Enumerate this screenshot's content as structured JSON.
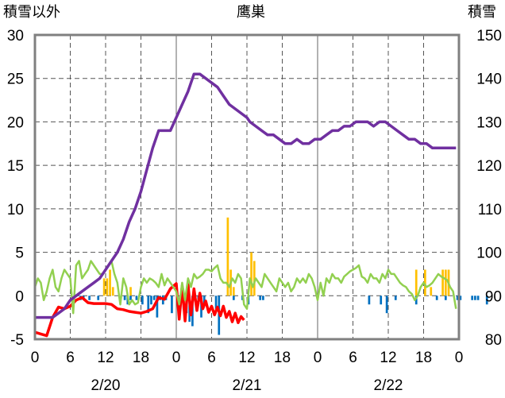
{
  "chart_data": {
    "type": "bar",
    "title": "鹰巣",
    "left_axis_label": "積雪以外",
    "right_axis_label": "積雪",
    "left_ylim": [
      -5,
      30
    ],
    "left_yticks": [
      -5,
      0,
      5,
      10,
      15,
      20,
      25,
      30
    ],
    "right_ylim": [
      80,
      150
    ],
    "right_yticks": [
      80,
      90,
      100,
      110,
      120,
      130,
      140,
      150
    ],
    "x_tick_labels": [
      "0",
      "6",
      "12",
      "18",
      "0",
      "6",
      "12",
      "18",
      "0",
      "6",
      "12",
      "18",
      "0"
    ],
    "date_labels": [
      "2/20",
      "2/21",
      "2/22"
    ],
    "grid": true,
    "series": [
      {
        "axis": "left",
        "kind": "bar",
        "color": "#ffc000",
        "values": [
          0,
          0,
          0,
          0,
          0,
          0,
          0,
          0,
          0,
          0,
          0,
          0,
          0,
          0,
          0,
          0,
          0,
          0,
          0,
          0,
          0,
          0,
          0,
          2,
          2,
          3,
          1,
          0,
          0,
          0,
          0,
          0,
          1,
          0,
          0,
          0,
          0,
          0,
          0,
          0,
          0,
          0,
          0,
          0,
          0,
          0,
          0,
          0,
          0,
          0,
          0,
          0,
          0,
          0,
          0,
          0,
          0,
          0,
          0,
          0,
          0,
          0,
          0,
          0,
          0,
          9,
          3,
          1,
          0,
          0,
          0,
          0,
          0,
          5,
          4,
          0,
          0,
          0,
          0,
          0,
          0,
          0,
          0,
          0,
          0,
          0,
          0,
          0,
          0,
          0,
          0,
          0,
          0,
          0,
          0,
          0,
          0,
          0,
          0,
          0,
          0,
          0,
          0,
          0,
          0,
          0,
          0,
          0,
          0,
          0,
          0,
          0,
          0,
          0,
          0,
          0,
          0,
          0,
          0,
          0,
          0,
          0,
          0,
          0,
          0,
          0,
          0,
          0,
          0,
          3,
          0,
          0,
          3,
          0,
          1,
          0,
          0,
          0,
          3,
          3,
          3,
          0,
          0,
          0,
          0,
          0,
          0,
          0,
          0,
          0,
          0,
          0
        ]
      },
      {
        "axis": "left",
        "kind": "bar",
        "color": "#0070c0",
        "values": [
          0,
          0,
          0,
          0,
          0,
          0,
          0,
          0,
          0,
          0,
          0,
          0,
          0,
          0,
          0,
          -0.5,
          -0.5,
          0,
          -0.5,
          0,
          0,
          -0.5,
          0,
          0,
          0,
          0,
          0,
          0,
          0,
          0,
          -0.5,
          -1,
          -0.5,
          0,
          -0.5,
          0,
          -1,
          0,
          -2,
          -1,
          -0.5,
          -2.5,
          -0.5,
          -1,
          -0.5,
          0,
          -2,
          0,
          -1,
          0,
          -1.5,
          -2,
          -3,
          -3.5,
          -0.5,
          -1,
          -2.5,
          -1,
          0,
          0,
          0,
          -1.5,
          -4.5,
          0,
          0,
          0,
          0,
          -0.5,
          0,
          0,
          -0.5,
          0,
          -1,
          0,
          0,
          0,
          -0.5,
          -0.5,
          0,
          0,
          0,
          0,
          0,
          0,
          0,
          0,
          0,
          0,
          0,
          0,
          0,
          0,
          0,
          0,
          0,
          0,
          0,
          0,
          0,
          0,
          0,
          0,
          0,
          0,
          0,
          0,
          0,
          0,
          0,
          0,
          0,
          0,
          0,
          -1,
          0,
          0,
          0,
          -1,
          0,
          -2,
          0,
          0,
          -0.5,
          0,
          0,
          0,
          0,
          0,
          0,
          -1,
          0,
          0,
          0,
          0,
          0,
          0,
          -0.5,
          0,
          0,
          -0.5,
          0,
          0,
          0,
          -0.5,
          -0.5,
          0,
          0,
          0,
          -0.5,
          -0.5,
          -0.5,
          0,
          0,
          -1,
          0
        ]
      },
      {
        "axis": "left",
        "kind": "line",
        "color": "#ff0000",
        "x": [
          0,
          2,
          4,
          6,
          8,
          10,
          12,
          14,
          16,
          18,
          20,
          22,
          24,
          26,
          28,
          30,
          32,
          34,
          36,
          38,
          40,
          42,
          44,
          46,
          48,
          50,
          52,
          54,
          56,
          58,
          60,
          62,
          64,
          66,
          68,
          70
        ],
        "values": [
          -4.2,
          -4.4,
          -4.6,
          -2.5,
          -1.3,
          -1.5,
          -1.2,
          -0.5,
          -0.2,
          -0.8,
          -0.9,
          -0.9,
          -0.9,
          -1,
          -1.5,
          -1.6,
          -1.8,
          -1.9,
          -2,
          -1.8,
          -1.5,
          -0.2,
          -0.4,
          0.8,
          1.4,
          1.1,
          1.3,
          0.8,
          0.3,
          -0.6,
          -1.2,
          -1.3,
          -1.2,
          -1.8,
          -2,
          -2.4
        ],
        "ext_x": [
          49,
          51,
          53,
          55,
          57,
          59,
          61,
          63,
          65,
          67,
          69,
          71
        ],
        "ext_values": [
          -2.7,
          -2.9,
          -2.2,
          -1.7,
          -1.5,
          -1.9,
          -2.2,
          -2.3,
          -2.5,
          -3,
          -3.1,
          -2.8
        ]
      },
      {
        "axis": "left",
        "kind": "line",
        "color": "#92d050",
        "x": [
          0,
          1,
          2,
          3,
          4,
          5,
          6,
          7,
          8,
          9,
          10,
          11,
          12,
          13,
          14,
          15,
          16,
          17,
          18,
          19,
          20,
          21,
          22,
          23,
          24,
          25,
          26,
          27,
          28,
          29,
          30,
          31,
          32,
          33,
          34,
          35,
          36,
          37,
          38,
          39,
          40,
          41,
          42,
          43,
          44,
          45,
          46,
          47,
          48,
          49,
          50,
          51,
          52,
          53,
          54,
          55,
          56,
          57,
          58,
          59,
          60,
          61,
          62,
          63,
          64,
          65,
          66,
          67,
          68,
          69,
          70,
          71,
          72
        ],
        "values": [
          1,
          2,
          1.5,
          -0.5,
          0.5,
          2,
          3,
          1,
          0.5,
          2,
          3,
          2.5,
          2,
          -2,
          3.5,
          4,
          2,
          2.5,
          3,
          4,
          3.5,
          3,
          2.5,
          2.5,
          3,
          3.5,
          4,
          2.5,
          1.5,
          -1,
          2,
          1,
          -1,
          -0.5,
          -1,
          -0.8,
          1,
          2,
          1.5,
          2,
          1.8,
          1.5,
          1,
          2.5,
          1.2,
          2,
          1.5,
          1,
          0.5,
          -1,
          1.5,
          -0.5,
          2,
          1,
          2.5,
          2,
          2.2,
          2.5,
          3,
          3,
          2.8,
          3.2,
          3.5,
          2,
          1.5,
          1.5,
          1,
          2,
          1.5,
          2.5,
          2,
          -1,
          -1.5
        ],
        "ext_x": [
          73,
          74,
          75,
          76,
          77,
          78,
          79,
          80,
          81,
          82,
          83,
          84,
          85,
          86,
          87,
          88,
          89,
          90,
          91,
          92,
          93,
          94,
          95,
          96,
          97,
          98,
          99,
          100,
          101,
          102,
          103,
          104,
          105,
          106,
          107,
          108,
          109,
          110,
          111,
          112,
          113,
          114,
          115,
          116,
          117,
          118,
          119,
          120,
          121,
          122,
          123,
          124,
          125,
          126,
          127,
          128,
          129,
          130,
          131,
          132,
          133,
          134,
          135,
          136,
          137,
          138,
          139,
          140,
          141,
          142,
          143
        ],
        "ext_values": [
          2,
          1,
          2,
          1.5,
          1,
          2.5,
          2,
          1.5,
          1,
          0.5,
          2,
          1.5,
          1,
          1.5,
          0.5,
          1,
          2,
          1.5,
          2,
          1.5,
          2.5,
          2,
          1,
          -0.5,
          1.5,
          0,
          2,
          1.5,
          2.5,
          2,
          2,
          1.5,
          2.2,
          2.5,
          2.8,
          3,
          3.2,
          3.5,
          2.2,
          2,
          1.5,
          2.5,
          2,
          2,
          1.5,
          2.5,
          2,
          3,
          2.5,
          2.5,
          2,
          1.5,
          1.2,
          1,
          0.5,
          0.2,
          -0.5,
          0,
          1,
          1.5,
          1,
          1.2,
          1.5,
          2,
          2.5,
          2.2,
          2,
          1.8,
          1,
          0.5,
          -1.5
        ]
      },
      {
        "axis": "right",
        "kind": "line",
        "color": "#7030a0",
        "x": [
          0,
          3,
          6,
          8,
          10,
          12,
          14,
          16,
          18,
          20,
          22,
          24,
          26,
          28,
          30,
          32,
          34,
          36,
          38,
          40,
          42,
          44,
          46,
          48,
          50,
          52,
          54,
          56,
          58,
          60,
          62,
          64,
          66,
          68,
          70,
          72
        ],
        "values": [
          85,
          85,
          85,
          86,
          87,
          89,
          90,
          91,
          92,
          93,
          94,
          96,
          98,
          100,
          103,
          107,
          110,
          114,
          119,
          124,
          128,
          128,
          128,
          131,
          134,
          137,
          141,
          141,
          140,
          139,
          138,
          136,
          134,
          133,
          132,
          131
        ],
        "ext_x": [
          73,
          75,
          77,
          79,
          81,
          83,
          85,
          87,
          89,
          91,
          93,
          95,
          97,
          99,
          101,
          103,
          105,
          107,
          109,
          111,
          113,
          115,
          117,
          119,
          121,
          123,
          125,
          127,
          129,
          131,
          133,
          135,
          137,
          139,
          141,
          143
        ],
        "ext_values": [
          130,
          129,
          128,
          127,
          127,
          126,
          125,
          125,
          126,
          125,
          125,
          126,
          126,
          127,
          128,
          128,
          129,
          129,
          130,
          130,
          130,
          129,
          130,
          130,
          129,
          128,
          127,
          126,
          126,
          125,
          125,
          124,
          124,
          124,
          124,
          124
        ]
      }
    ]
  }
}
